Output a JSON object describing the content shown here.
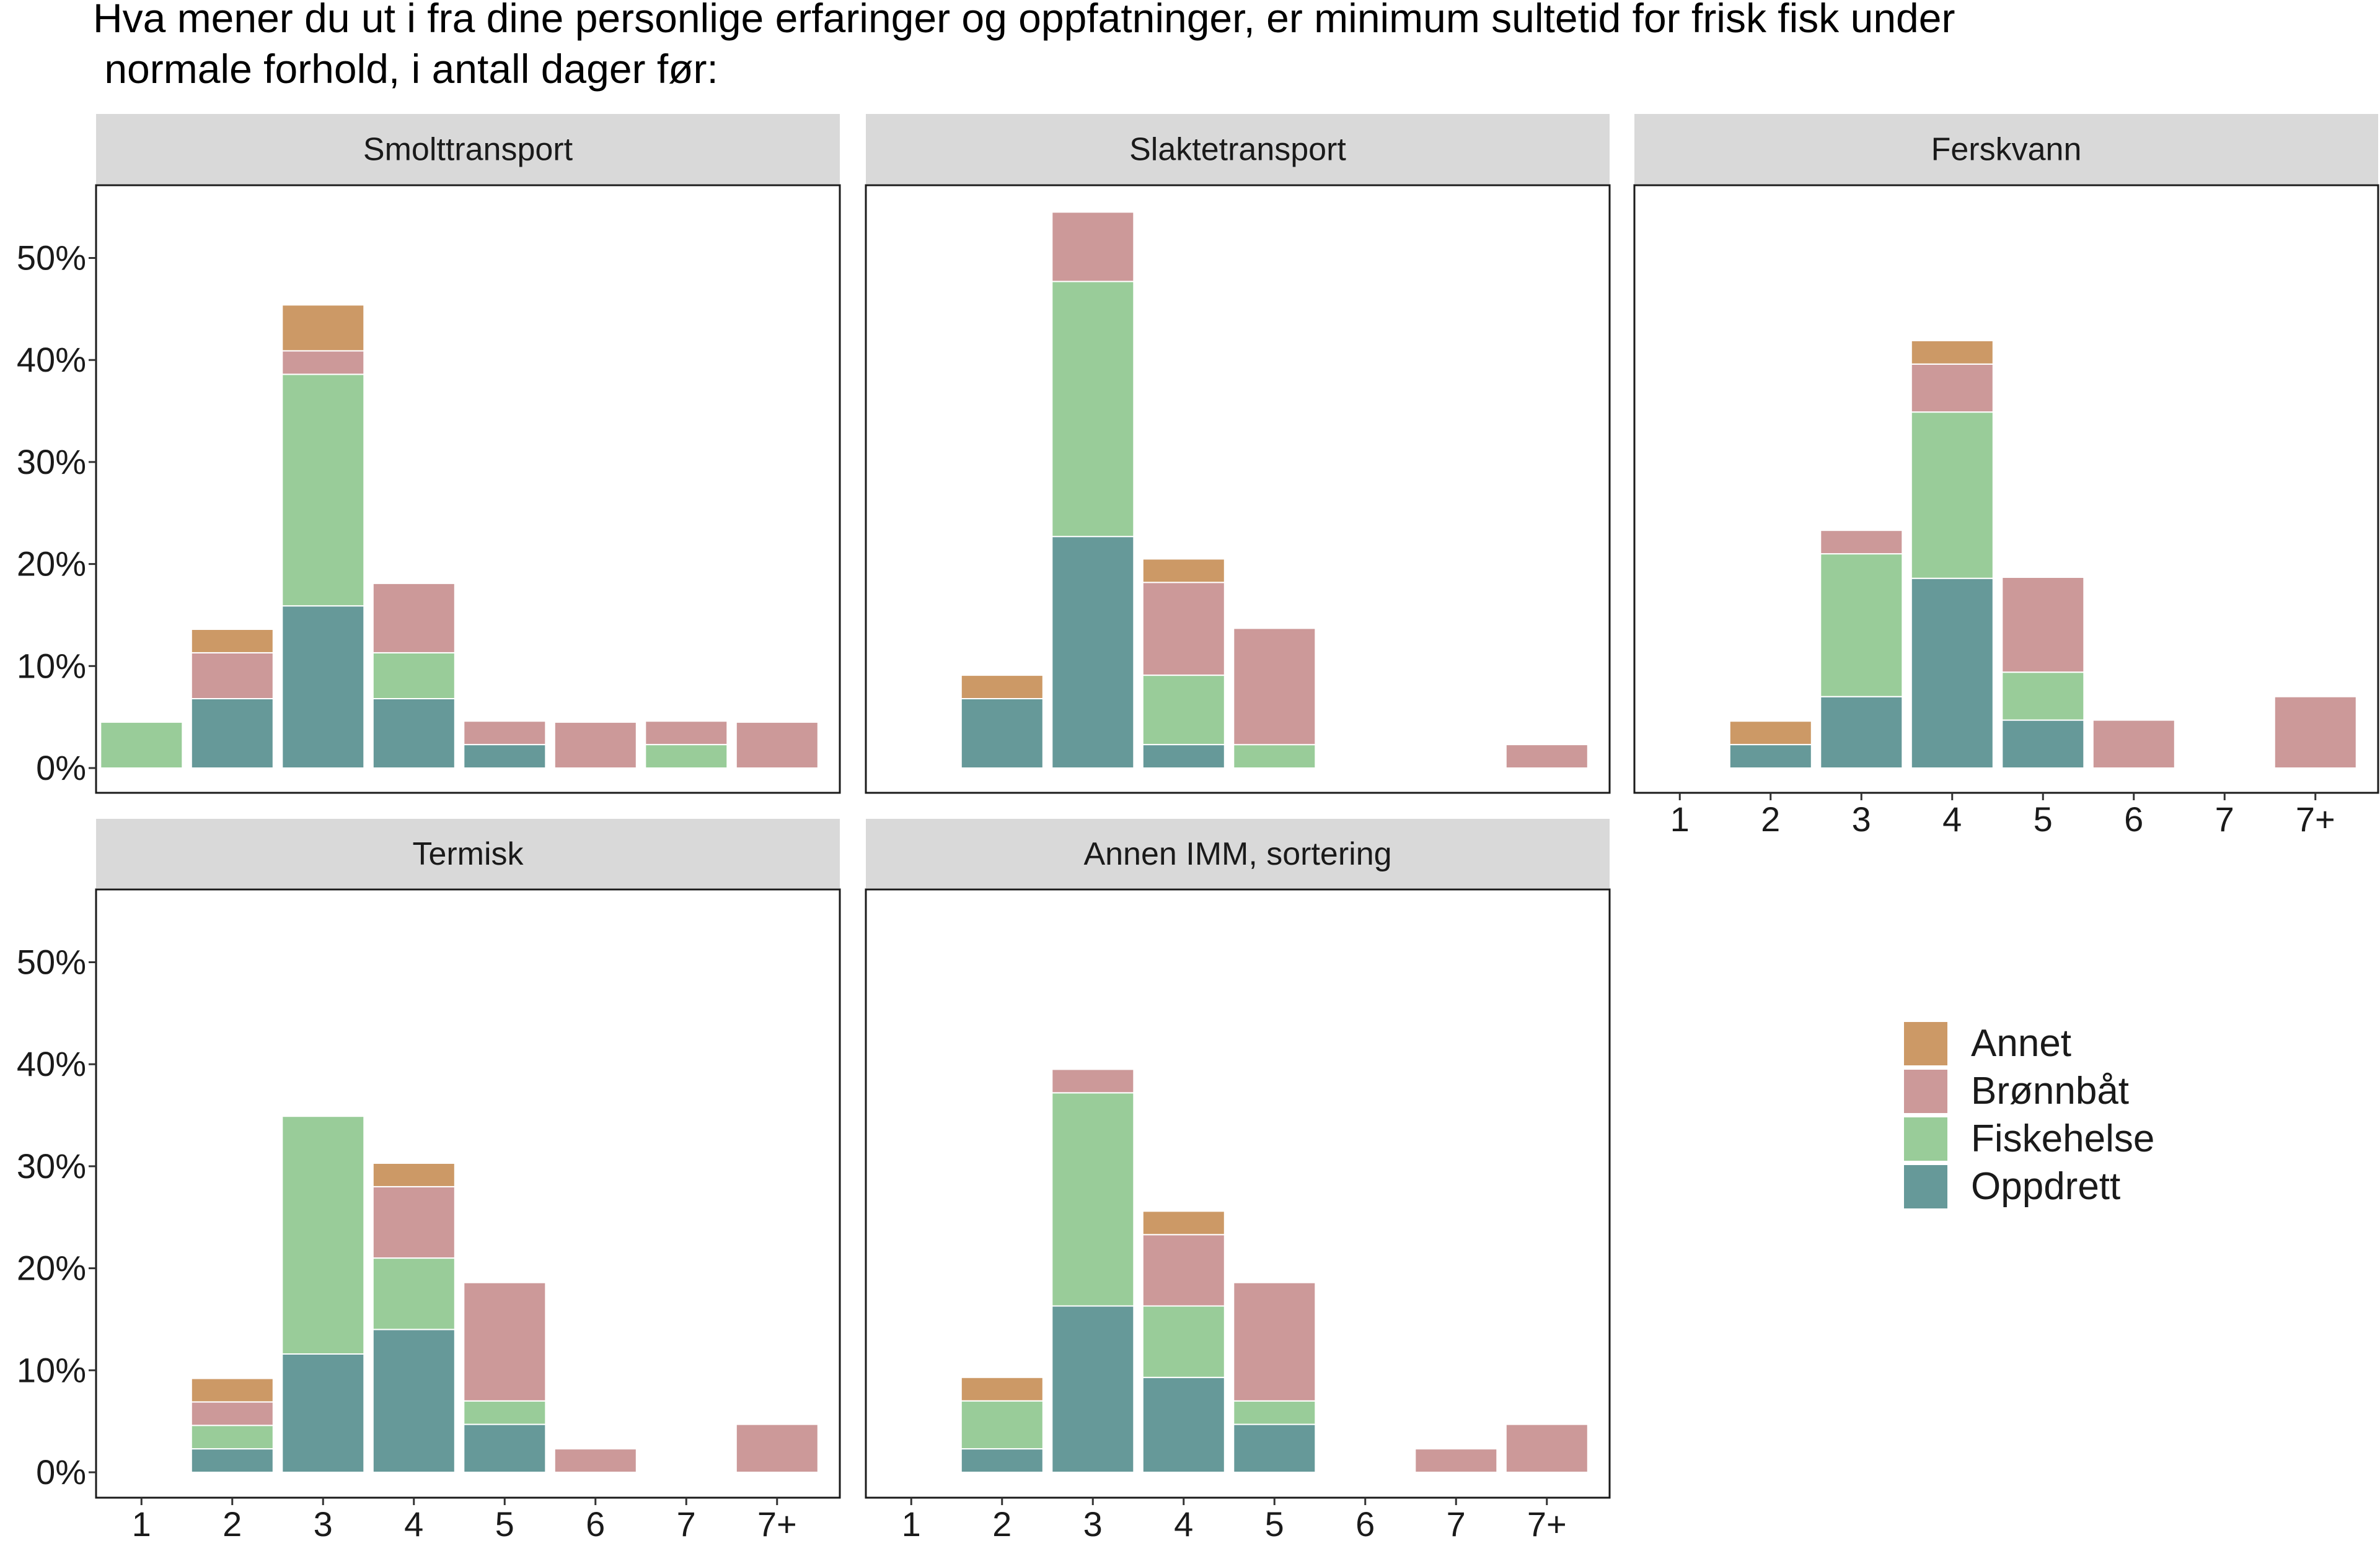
{
  "title": "Hva mener du ut i fra dine personlige erfaringer og oppfatninger, er minimum sultetid for frisk fisk under\n normale forhold, i antall dager før:",
  "chart_data": {
    "type": "bar",
    "stacked": true,
    "title": "Hva mener du ut i fra dine personlige erfaringer og oppfatninger, er minimum sultetid for frisk fisk under normale forhold, i antall dager før:",
    "categories": [
      "1",
      "2",
      "3",
      "4",
      "5",
      "6",
      "7",
      "7+"
    ],
    "yticks": [
      "0%",
      "10%",
      "20%",
      "30%",
      "40%",
      "50%"
    ],
    "ylim": [
      0,
      57.5
    ],
    "legend_order": [
      "Annet",
      "Brønnbåt",
      "Fiskehelse",
      "Oppdrett"
    ],
    "colors": {
      "Oppdrett": "#669999",
      "Fiskehelse": "#99cc99",
      "Brønnbåt": "#cc9999",
      "Annet": "#cc9966"
    },
    "panels": [
      {
        "name": "Smolttransport",
        "series": [
          {
            "name": "Oppdrett",
            "values": [
              0,
              6.8,
              15.9,
              6.8,
              2.3,
              0,
              0,
              0
            ]
          },
          {
            "name": "Fiskehelse",
            "values": [
              4.5,
              0,
              22.7,
              4.5,
              0,
              0,
              2.3,
              0
            ]
          },
          {
            "name": "Brønnbåt",
            "values": [
              0,
              4.5,
              2.3,
              6.8,
              2.3,
              4.5,
              2.3,
              4.5
            ]
          },
          {
            "name": "Annet",
            "values": [
              0,
              2.3,
              4.5,
              0,
              0,
              0,
              0,
              0
            ]
          }
        ]
      },
      {
        "name": "Slaktetransport",
        "series": [
          {
            "name": "Oppdrett",
            "values": [
              0,
              6.8,
              22.7,
              2.3,
              0,
              0,
              0,
              0
            ]
          },
          {
            "name": "Fiskehelse",
            "values": [
              0,
              0,
              25.0,
              6.8,
              2.3,
              0,
              0,
              0
            ]
          },
          {
            "name": "Brønnbåt",
            "values": [
              0,
              0,
              6.8,
              9.1,
              11.4,
              0,
              0,
              2.3
            ]
          },
          {
            "name": "Annet",
            "values": [
              0,
              2.3,
              0,
              2.3,
              0,
              0,
              0,
              0
            ]
          }
        ]
      },
      {
        "name": "Ferskvann",
        "series": [
          {
            "name": "Oppdrett",
            "values": [
              0,
              2.3,
              7.0,
              18.6,
              4.7,
              0,
              0,
              0
            ]
          },
          {
            "name": "Fiskehelse",
            "values": [
              0,
              0,
              14.0,
              16.3,
              4.7,
              0,
              0,
              0
            ]
          },
          {
            "name": "Brønnbåt",
            "values": [
              0,
              0,
              2.3,
              4.7,
              9.3,
              4.7,
              0,
              7.0
            ]
          },
          {
            "name": "Annet",
            "values": [
              0,
              2.3,
              0,
              2.3,
              0,
              0,
              0,
              0
            ]
          }
        ]
      },
      {
        "name": "Termisk",
        "series": [
          {
            "name": "Oppdrett",
            "values": [
              0,
              2.3,
              11.6,
              14.0,
              4.7,
              0,
              0,
              0
            ]
          },
          {
            "name": "Fiskehelse",
            "values": [
              0,
              2.3,
              23.3,
              7.0,
              2.3,
              0,
              0,
              0
            ]
          },
          {
            "name": "Brønnbåt",
            "values": [
              0,
              2.3,
              0,
              7.0,
              11.6,
              2.3,
              0,
              4.7
            ]
          },
          {
            "name": "Annet",
            "values": [
              0,
              2.3,
              0,
              2.3,
              0,
              0,
              0,
              0
            ]
          }
        ]
      },
      {
        "name": "Annen IMM, sortering",
        "series": [
          {
            "name": "Oppdrett",
            "values": [
              0,
              2.3,
              16.3,
              9.3,
              4.7,
              0,
              0,
              0
            ]
          },
          {
            "name": "Fiskehelse",
            "values": [
              0,
              4.7,
              20.9,
              7.0,
              2.3,
              0,
              0,
              0
            ]
          },
          {
            "name": "Brønnbåt",
            "values": [
              0,
              0,
              2.3,
              7.0,
              11.6,
              0,
              2.3,
              4.7
            ]
          },
          {
            "name": "Annet",
            "values": [
              0,
              2.3,
              0,
              2.3,
              0,
              0,
              0,
              0
            ]
          }
        ]
      }
    ]
  }
}
